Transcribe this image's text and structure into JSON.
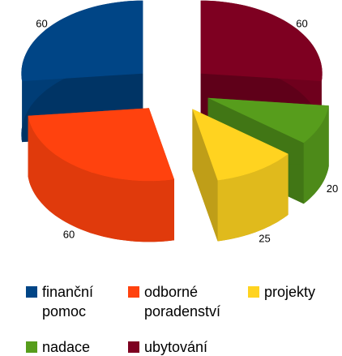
{
  "chart_data": {
    "type": "pie",
    "categories": [
      "finanční pomoc",
      "odborné poradenství",
      "projekty",
      "nadace",
      "ubytování"
    ],
    "values": [
      60,
      60,
      25,
      20,
      60
    ],
    "colors": [
      "#004586",
      "#ff420e",
      "#ffd320",
      "#579d1c",
      "#7e0021"
    ],
    "legend": "bottom"
  }
}
